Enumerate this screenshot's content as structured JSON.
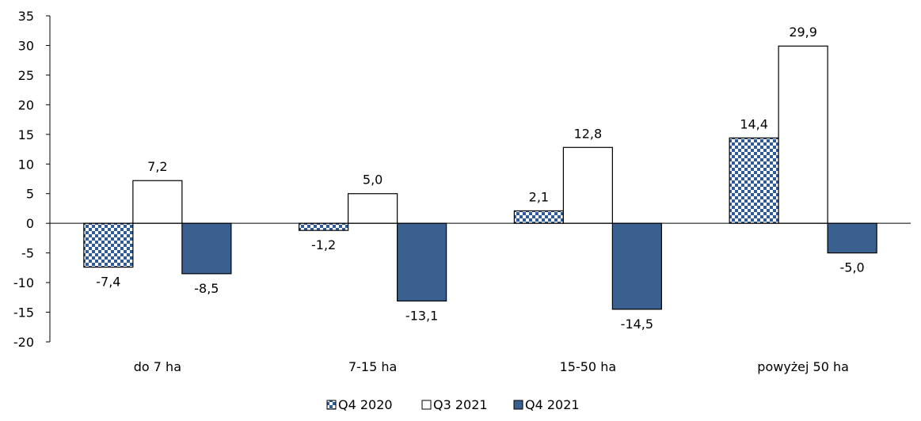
{
  "chart_data": {
    "type": "bar",
    "title": "",
    "xlabel": "",
    "ylabel": "",
    "categories": [
      "do 7 ha",
      "7-15 ha",
      "15-50 ha",
      "powyżej 50 ha"
    ],
    "series": [
      {
        "name": "Q4 2020",
        "values": [
          -7.4,
          -1.2,
          2.1,
          14.4
        ],
        "labels": [
          "-7,4",
          "-1,2",
          "2,1",
          "14,4"
        ],
        "fill": "checker",
        "color": "#2E5B9A"
      },
      {
        "name": "Q3 2021",
        "values": [
          7.2,
          5.0,
          12.8,
          29.9
        ],
        "labels": [
          "7,2",
          "5,0",
          "12,8",
          "29,9"
        ],
        "fill": "white",
        "color": "#ffffff"
      },
      {
        "name": "Q4 2021",
        "values": [
          -8.5,
          -13.1,
          -14.5,
          -5.0
        ],
        "labels": [
          "-8,5",
          "-13,1",
          "-14,5",
          "-5,0"
        ],
        "fill": "solid",
        "color": "#3A6090"
      }
    ],
    "ylim": [
      -20,
      35
    ],
    "yticks": [
      35,
      30,
      25,
      20,
      15,
      10,
      5,
      0,
      -5,
      -10,
      -15,
      -20
    ],
    "grid": false,
    "legend_position": "bottom-center"
  }
}
